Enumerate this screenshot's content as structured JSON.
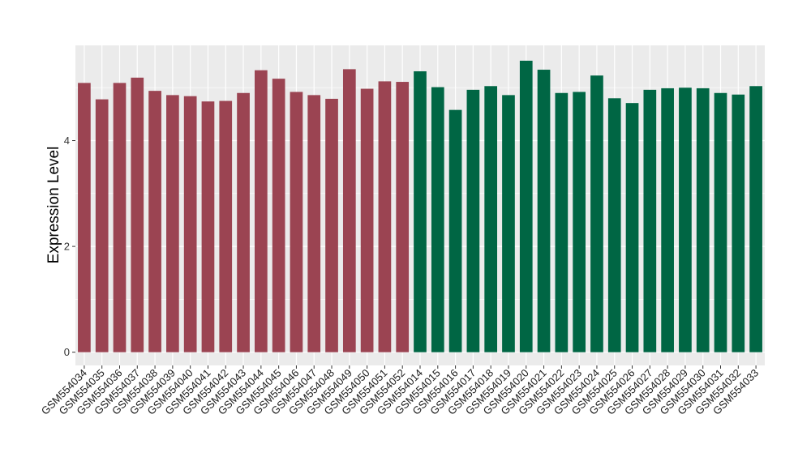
{
  "chart_data": {
    "type": "bar",
    "title": "",
    "xlabel": "",
    "ylabel": "Expression Level",
    "ylim": [
      -0.25,
      5.8
    ],
    "yticks": [
      0,
      2,
      4
    ],
    "grid": true,
    "legend": "none",
    "colors": {
      "group1": "#9b4452",
      "group2": "#006644",
      "panel": "#ebebeb",
      "grid": "#ffffff"
    },
    "categories": [
      "GSM554034",
      "GSM554035",
      "GSM554036",
      "GSM554037",
      "GSM554038",
      "GSM554039",
      "GSM554040",
      "GSM554041",
      "GSM554042",
      "GSM554043",
      "GSM554044",
      "GSM554045",
      "GSM554046",
      "GSM554047",
      "GSM554048",
      "GSM554049",
      "GSM554050",
      "GSM554051",
      "GSM554052",
      "GSM554014",
      "GSM554015",
      "GSM554016",
      "GSM554017",
      "GSM554018",
      "GSM554019",
      "GSM554020",
      "GSM554021",
      "GSM554022",
      "GSM554023",
      "GSM554024",
      "GSM554025",
      "GSM554026",
      "GSM554027",
      "GSM554028",
      "GSM554029",
      "GSM554030",
      "GSM554031",
      "GSM554032",
      "GSM554033"
    ],
    "values": [
      5.09,
      4.78,
      5.09,
      5.19,
      4.94,
      4.86,
      4.84,
      4.74,
      4.75,
      4.9,
      5.33,
      5.17,
      4.92,
      4.86,
      4.79,
      5.35,
      4.98,
      5.12,
      5.11,
      5.31,
      5.01,
      4.58,
      4.96,
      5.03,
      4.86,
      5.51,
      5.34,
      4.9,
      4.92,
      5.23,
      4.8,
      4.71,
      4.96,
      4.99,
      5.0,
      4.99,
      4.9,
      4.87,
      5.03
    ],
    "groups": [
      1,
      1,
      1,
      1,
      1,
      1,
      1,
      1,
      1,
      1,
      1,
      1,
      1,
      1,
      1,
      1,
      1,
      1,
      1,
      2,
      2,
      2,
      2,
      2,
      2,
      2,
      2,
      2,
      2,
      2,
      2,
      2,
      2,
      2,
      2,
      2,
      2,
      2,
      2
    ]
  }
}
